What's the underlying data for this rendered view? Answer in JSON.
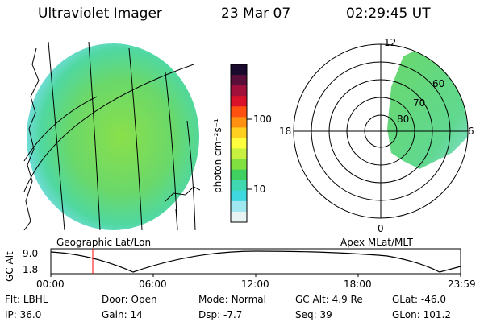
{
  "header": {
    "instrument": "Ultraviolet Imager",
    "date": "23 Mar 07",
    "time": "02:29:45 UT"
  },
  "colorbar": {
    "unit_label": "photon cm⁻²s⁻¹",
    "tick_labels": [
      "100",
      "10"
    ],
    "colors": [
      "#1a0a2e",
      "#5a0f3a",
      "#a0103a",
      "#d8102a",
      "#ff5010",
      "#ff9010",
      "#ffd020",
      "#ffff40",
      "#c8f040",
      "#80e040",
      "#40d060",
      "#40d8b0",
      "#40d8e0",
      "#a0e8f0",
      "#e8f4f4"
    ]
  },
  "geographic_panel": {
    "label": "Geographic Lat/Lon",
    "disk_color": "#6ad86a",
    "edge_color": "#5ad8c8"
  },
  "polar_panel": {
    "label": "Apex MLat/MLT",
    "mlt_labels": {
      "top": "12",
      "left": "18",
      "right": "6",
      "bottom": "0"
    },
    "mlat_labels": [
      "60",
      "70",
      "80"
    ]
  },
  "timeline": {
    "axis_label": "GC Alt",
    "y_ticks": [
      "9.0",
      "1.8"
    ],
    "x_ticks": [
      "00:00",
      "06:00",
      "12:00",
      "18:00",
      "23:59"
    ],
    "current_time_marker": "02:29:45",
    "marker_color": "#ff0000"
  },
  "status": {
    "row1": [
      {
        "key": "Flt:",
        "value": "LBHL"
      },
      {
        "key": "Door:",
        "value": "Open"
      },
      {
        "key": "Mode:",
        "value": "Normal"
      },
      {
        "key": "GC Alt:",
        "value": "4.9 Re"
      },
      {
        "key": "GLat:",
        "value": "-46.0"
      }
    ],
    "row2": [
      {
        "key": "IP:",
        "value": "36.0"
      },
      {
        "key": "Gain:",
        "value": "14"
      },
      {
        "key": "Dsp:",
        "value": "-7.7"
      },
      {
        "key": "Seq:",
        "value": "39"
      },
      {
        "key": "GLon:",
        "value": "101.2"
      }
    ]
  }
}
